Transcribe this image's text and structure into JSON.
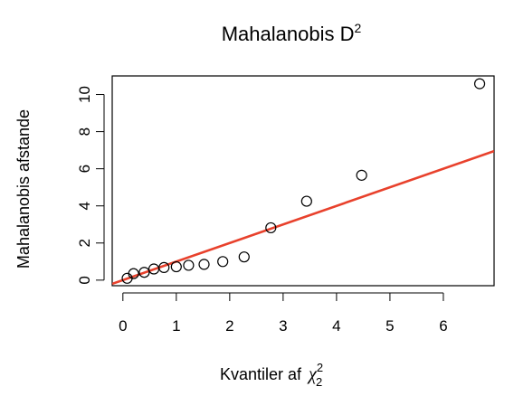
{
  "chart_data": {
    "type": "scatter",
    "title": "Mahalanobis D",
    "title_superscript": "2",
    "xlabel": "Kvantiler af",
    "xlabel_symbol": "χ",
    "xlabel_symbol_sup": "2",
    "xlabel_symbol_sub": "2",
    "ylabel": "Mahalanobis afstande",
    "xlim": [
      -0.2,
      6.95
    ],
    "ylim": [
      -0.3,
      11.0
    ],
    "xticks": [
      0,
      1,
      2,
      3,
      4,
      5,
      6
    ],
    "yticks": [
      0,
      2,
      4,
      6,
      8,
      10
    ],
    "grid": false,
    "points": {
      "x": [
        0.08,
        0.2,
        0.4,
        0.58,
        0.77,
        1.0,
        1.23,
        1.52,
        1.87,
        2.27,
        2.77,
        3.44,
        4.47,
        6.68
      ],
      "y": [
        0.1,
        0.35,
        0.42,
        0.6,
        0.68,
        0.72,
        0.8,
        0.85,
        1.0,
        1.25,
        2.82,
        4.25,
        5.65,
        10.58
      ]
    },
    "reference_line": {
      "intercept": 0.0,
      "slope": 1.0,
      "color": "#e8412c"
    },
    "marker_color": "#000000"
  }
}
